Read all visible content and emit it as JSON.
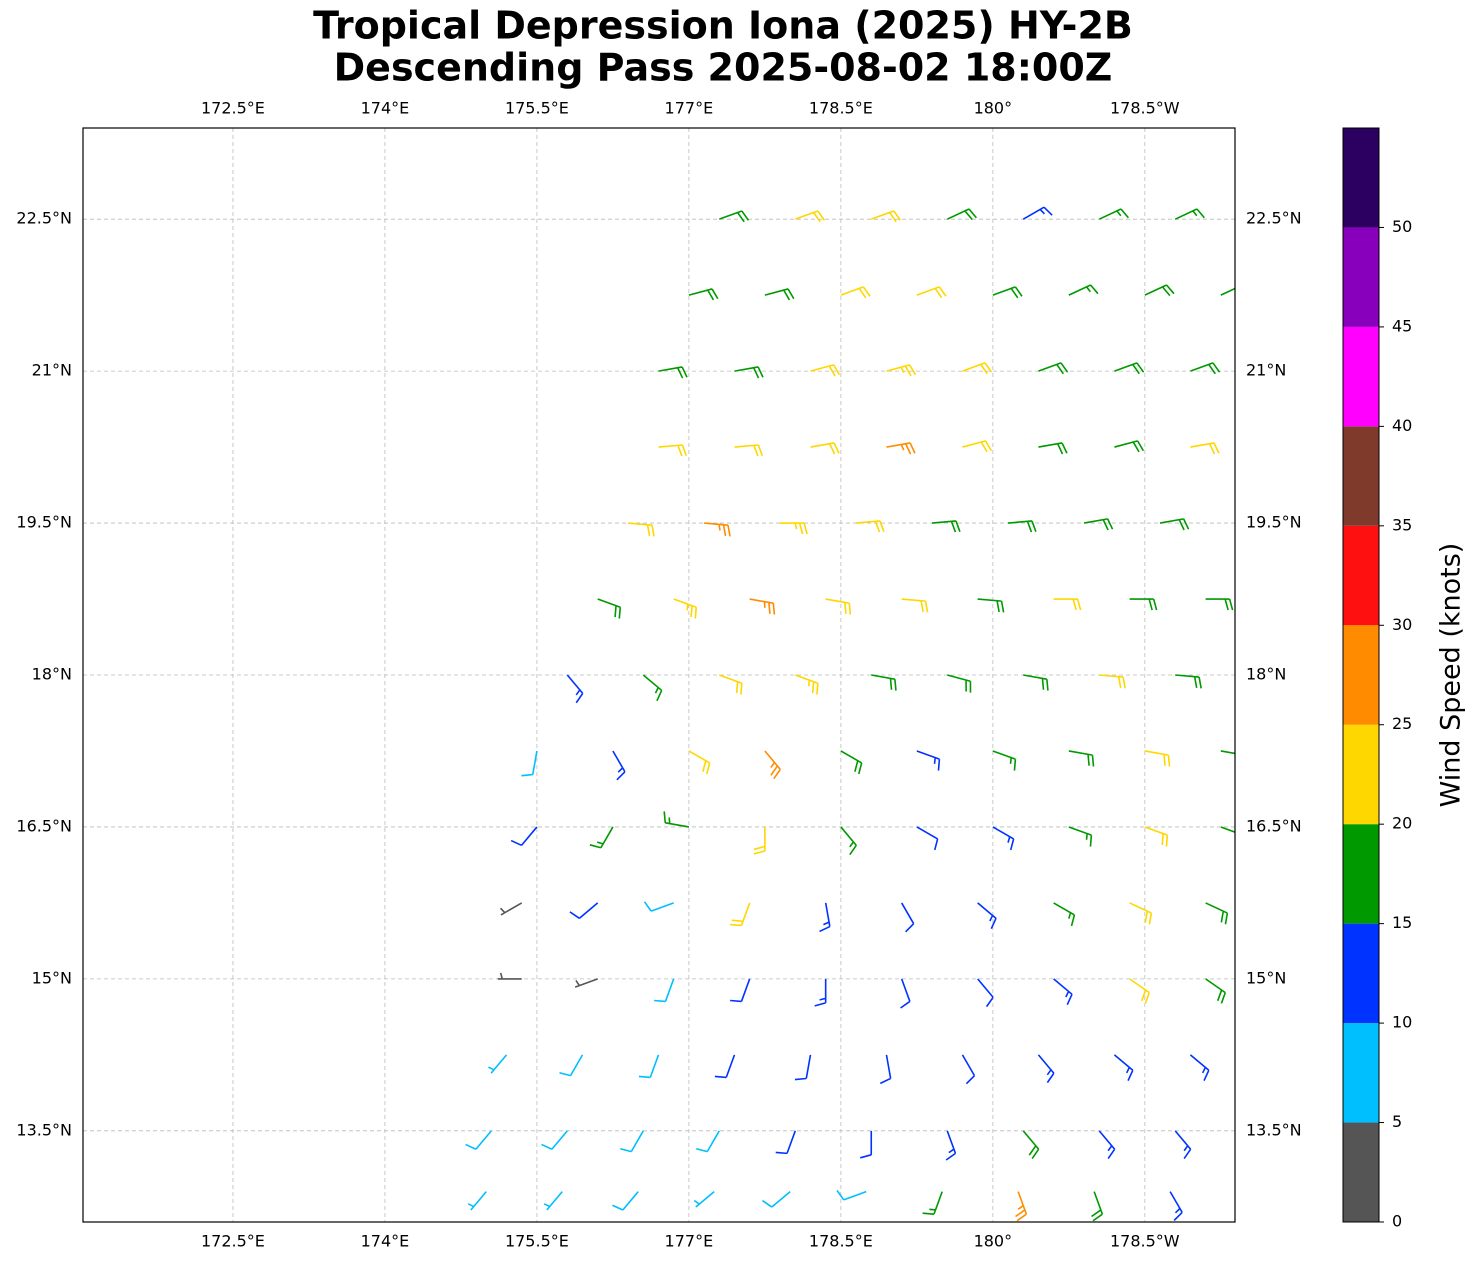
{
  "chart_data": {
    "type": "wind-barb-map",
    "title": [
      "Tropical Depression Iona (2025) HY-2B",
      "Descending Pass 2025-08-02 18:00Z"
    ],
    "xlim": [
      171.02,
      182.39
    ],
    "ylim": [
      12.6,
      23.4
    ],
    "xticks": [
      {
        "value": 172.5,
        "label": "172.5°E"
      },
      {
        "value": 174,
        "label": "174°E"
      },
      {
        "value": 175.5,
        "label": "175.5°E"
      },
      {
        "value": 177,
        "label": "177°E"
      },
      {
        "value": 178.5,
        "label": "178.5°E"
      },
      {
        "value": 180,
        "label": "180°"
      },
      {
        "value": 181.5,
        "label": "178.5°W"
      }
    ],
    "yticks": [
      {
        "value": 13.5,
        "label": "13.5°N"
      },
      {
        "value": 15,
        "label": "15°N"
      },
      {
        "value": 16.5,
        "label": "16.5°N"
      },
      {
        "value": 18,
        "label": "18°N"
      },
      {
        "value": 19.5,
        "label": "19.5°N"
      },
      {
        "value": 21,
        "label": "21°N"
      },
      {
        "value": 22.5,
        "label": "22.5°N"
      }
    ],
    "grid": true,
    "colorbar": {
      "label": "Wind Speed (knots)",
      "lim": [
        0,
        55
      ],
      "ticks": [
        0,
        5,
        10,
        15,
        20,
        25,
        30,
        35,
        40,
        45,
        50
      ],
      "bounds": [
        0,
        5,
        10,
        15,
        20,
        25,
        30,
        35,
        40,
        45,
        50,
        55
      ],
      "colors": [
        "#555555",
        "#00bfff",
        "#0033ff",
        "#009900",
        "#ffd700",
        "#ff8c00",
        "#ff1010",
        "#803a2b",
        "#ff00ff",
        "#8800bb",
        "#2b0060"
      ]
    },
    "barbs": {
      "fields": [
        "lon",
        "lat",
        "speed",
        "direction"
      ],
      "points": [
        [
          177.3,
          22.5,
          18,
          70
        ],
        [
          178.05,
          22.5,
          22,
          70
        ],
        [
          178.8,
          22.5,
          20,
          70
        ],
        [
          179.55,
          22.5,
          18,
          65
        ],
        [
          180.3,
          22.5,
          13,
          60
        ],
        [
          181.05,
          22.5,
          17,
          65
        ],
        [
          181.8,
          22.5,
          17,
          65
        ],
        [
          177.0,
          21.75,
          18,
          75
        ],
        [
          177.75,
          21.75,
          19,
          75
        ],
        [
          178.5,
          21.75,
          20,
          70
        ],
        [
          179.25,
          21.75,
          22,
          70
        ],
        [
          180.0,
          21.75,
          18,
          70
        ],
        [
          180.75,
          21.75,
          17,
          65
        ],
        [
          181.5,
          21.75,
          18,
          65
        ],
        [
          182.25,
          21.75,
          18,
          65
        ],
        [
          176.7,
          21.0,
          18,
          80
        ],
        [
          177.45,
          21.0,
          18,
          80
        ],
        [
          178.2,
          21.0,
          20,
          75
        ],
        [
          178.95,
          21.0,
          23,
          75
        ],
        [
          179.7,
          21.0,
          20,
          70
        ],
        [
          180.45,
          21.0,
          18,
          70
        ],
        [
          181.2,
          21.0,
          19,
          70
        ],
        [
          181.95,
          21.0,
          18,
          70
        ],
        [
          176.7,
          20.25,
          22,
          85
        ],
        [
          177.45,
          20.25,
          20,
          85
        ],
        [
          178.2,
          20.25,
          22,
          80
        ],
        [
          178.95,
          20.25,
          26,
          80
        ],
        [
          179.7,
          20.25,
          22,
          75
        ],
        [
          180.45,
          20.25,
          18,
          80
        ],
        [
          181.2,
          20.25,
          18,
          75
        ],
        [
          181.95,
          20.25,
          22,
          80
        ],
        [
          176.4,
          19.5,
          22,
          95
        ],
        [
          177.15,
          19.5,
          27,
          95
        ],
        [
          177.9,
          19.5,
          24,
          90
        ],
        [
          178.65,
          19.5,
          21,
          85
        ],
        [
          179.4,
          19.5,
          19,
          85
        ],
        [
          180.15,
          19.5,
          18,
          85
        ],
        [
          180.9,
          19.5,
          18,
          80
        ],
        [
          181.65,
          19.5,
          18,
          80
        ],
        [
          176.1,
          18.75,
          19,
          110
        ],
        [
          176.85,
          18.75,
          24,
          110
        ],
        [
          177.6,
          18.75,
          27,
          100
        ],
        [
          178.35,
          18.75,
          22,
          100
        ],
        [
          179.1,
          18.75,
          20,
          95
        ],
        [
          179.85,
          18.75,
          18,
          95
        ],
        [
          180.6,
          18.75,
          20,
          90
        ],
        [
          181.35,
          18.75,
          19,
          90
        ],
        [
          182.1,
          18.75,
          18,
          90
        ],
        [
          175.8,
          18.0,
          13,
          140
        ],
        [
          176.55,
          18.0,
          17,
          130
        ],
        [
          177.3,
          18.0,
          22,
          110
        ],
        [
          178.05,
          18.0,
          24,
          110
        ],
        [
          178.8,
          18.0,
          19,
          100
        ],
        [
          179.55,
          18.0,
          18,
          105
        ],
        [
          180.3,
          18.0,
          19,
          100
        ],
        [
          181.05,
          18.0,
          21,
          95
        ],
        [
          181.8,
          18.0,
          19,
          95
        ],
        [
          175.5,
          17.25,
          9,
          190
        ],
        [
          176.25,
          17.25,
          14,
          150
        ],
        [
          177.0,
          17.25,
          22,
          120
        ],
        [
          177.75,
          17.25,
          26,
          140
        ],
        [
          178.5,
          17.25,
          19,
          120
        ],
        [
          179.25,
          17.25,
          14,
          110
        ],
        [
          180.0,
          17.25,
          17,
          110
        ],
        [
          180.75,
          17.25,
          19,
          100
        ],
        [
          181.5,
          17.25,
          20,
          100
        ],
        [
          182.25,
          17.25,
          17,
          100
        ],
        [
          175.5,
          16.5,
          12,
          220
        ],
        [
          176.25,
          16.5,
          17,
          210
        ],
        [
          177.0,
          16.5,
          15,
          280
        ],
        [
          177.75,
          16.5,
          22,
          180
        ],
        [
          178.5,
          16.5,
          16,
          140
        ],
        [
          179.25,
          16.5,
          10,
          120
        ],
        [
          180.0,
          16.5,
          13,
          120
        ],
        [
          180.75,
          16.5,
          17,
          110
        ],
        [
          181.5,
          16.5,
          20,
          110
        ],
        [
          182.25,
          16.5,
          15,
          110
        ],
        [
          175.35,
          15.75,
          4,
          240
        ],
        [
          176.1,
          15.75,
          12,
          230
        ],
        [
          176.85,
          15.75,
          9,
          250
        ],
        [
          177.6,
          15.75,
          20,
          200
        ],
        [
          178.35,
          15.75,
          14,
          170
        ],
        [
          179.1,
          15.75,
          11,
          150
        ],
        [
          179.85,
          15.75,
          13,
          130
        ],
        [
          180.6,
          15.75,
          16,
          120
        ],
        [
          181.35,
          15.75,
          22,
          115
        ],
        [
          182.1,
          15.75,
          18,
          115
        ],
        [
          175.35,
          15.0,
          3,
          270
        ],
        [
          176.1,
          15.0,
          4,
          250
        ],
        [
          176.85,
          15.0,
          8,
          200
        ],
        [
          177.6,
          15.0,
          12,
          200
        ],
        [
          178.35,
          15.0,
          13,
          180
        ],
        [
          179.1,
          15.0,
          11,
          160
        ],
        [
          179.85,
          15.0,
          12,
          140
        ],
        [
          180.6,
          15.0,
          14,
          130
        ],
        [
          181.35,
          15.0,
          21,
          125
        ],
        [
          182.1,
          15.0,
          18,
          125
        ],
        [
          175.2,
          14.25,
          7,
          220
        ],
        [
          175.95,
          14.25,
          8,
          210
        ],
        [
          176.7,
          14.25,
          8,
          200
        ],
        [
          177.45,
          14.25,
          10,
          200
        ],
        [
          178.2,
          14.25,
          12,
          190
        ],
        [
          178.95,
          14.25,
          12,
          170
        ],
        [
          179.7,
          14.25,
          12,
          150
        ],
        [
          180.45,
          14.25,
          13,
          140
        ],
        [
          181.2,
          14.25,
          14,
          130
        ],
        [
          181.95,
          14.25,
          13,
          130
        ],
        [
          175.05,
          13.5,
          8,
          220
        ],
        [
          175.8,
          13.5,
          9,
          220
        ],
        [
          176.55,
          13.5,
          9,
          210
        ],
        [
          177.3,
          13.5,
          8,
          210
        ],
        [
          178.05,
          13.5,
          10,
          200
        ],
        [
          178.8,
          13.5,
          11,
          180
        ],
        [
          179.55,
          13.5,
          13,
          160
        ],
        [
          180.3,
          13.5,
          18,
          140
        ],
        [
          181.05,
          13.5,
          14,
          140
        ],
        [
          181.8,
          13.5,
          13,
          140
        ],
        [
          175.0,
          12.9,
          7,
          220
        ],
        [
          175.75,
          12.9,
          7,
          220
        ],
        [
          176.5,
          12.9,
          8,
          220
        ],
        [
          177.25,
          12.9,
          7,
          230
        ],
        [
          178.0,
          12.9,
          8,
          230
        ],
        [
          178.75,
          12.9,
          9,
          250
        ],
        [
          179.5,
          12.9,
          15,
          200
        ],
        [
          180.25,
          12.9,
          25,
          160
        ],
        [
          181.0,
          12.9,
          18,
          160
        ],
        [
          181.75,
          12.9,
          13,
          150
        ]
      ]
    }
  }
}
